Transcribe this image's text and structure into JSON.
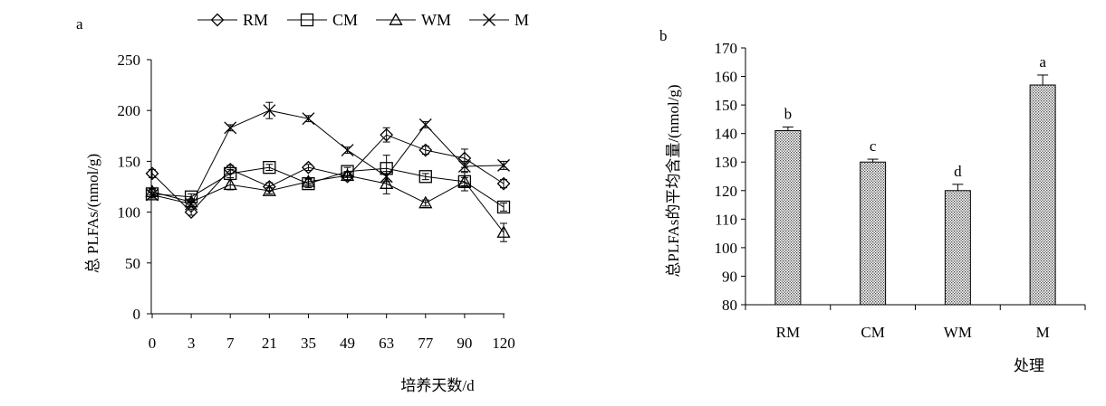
{
  "chart_data": [
    {
      "panel": "a",
      "type": "line",
      "xlabel": "培养天数/d",
      "ylabel": "总 PLFAs/(nmol/g)",
      "categories": [
        "0",
        "3",
        "7",
        "21",
        "35",
        "49",
        "63",
        "77",
        "90",
        "120"
      ],
      "ylim": [
        0,
        250
      ],
      "yticks": [
        0,
        50,
        100,
        150,
        200,
        250
      ],
      "legend_position": "top",
      "series": [
        {
          "name": "RM",
          "marker": "diamond",
          "values": [
            138,
            100,
            142,
            125,
            144,
            135,
            176,
            161,
            153,
            128
          ],
          "errors": [
            4,
            3,
            4,
            4,
            3,
            4,
            7,
            4,
            9,
            4
          ]
        },
        {
          "name": "CM",
          "marker": "square",
          "values": [
            118,
            115,
            138,
            144,
            128,
            140,
            143,
            135,
            130,
            105
          ],
          "errors": [
            4,
            3,
            4,
            3,
            4,
            4,
            13,
            3,
            9,
            4
          ]
        },
        {
          "name": "WM",
          "marker": "triangle",
          "values": [
            120,
            110,
            127,
            121,
            130,
            136,
            128,
            109,
            130,
            80
          ],
          "errors": [
            3,
            3,
            5,
            3,
            3,
            4,
            10,
            3,
            4,
            9
          ]
        },
        {
          "name": "M",
          "marker": "x",
          "values": [
            117,
            108,
            183,
            200,
            192,
            161,
            135,
            186,
            145,
            146
          ],
          "errors": [
            3,
            3,
            3,
            8,
            3,
            3,
            5,
            3,
            5,
            4
          ]
        }
      ]
    },
    {
      "panel": "b",
      "type": "bar",
      "xlabel": "处理",
      "ylabel": "总PLFAs的平均含量/(nmol/g)",
      "categories": [
        "RM",
        "CM",
        "WM",
        "M"
      ],
      "values": [
        141,
        130,
        120,
        157
      ],
      "errors": [
        1.3,
        1.0,
        2.2,
        3.5
      ],
      "significance_letters": [
        "b",
        "c",
        "d",
        "a"
      ],
      "ylim": [
        80,
        170
      ],
      "yticks": [
        80,
        90,
        100,
        110,
        120,
        130,
        140,
        150,
        160,
        170
      ]
    }
  ]
}
